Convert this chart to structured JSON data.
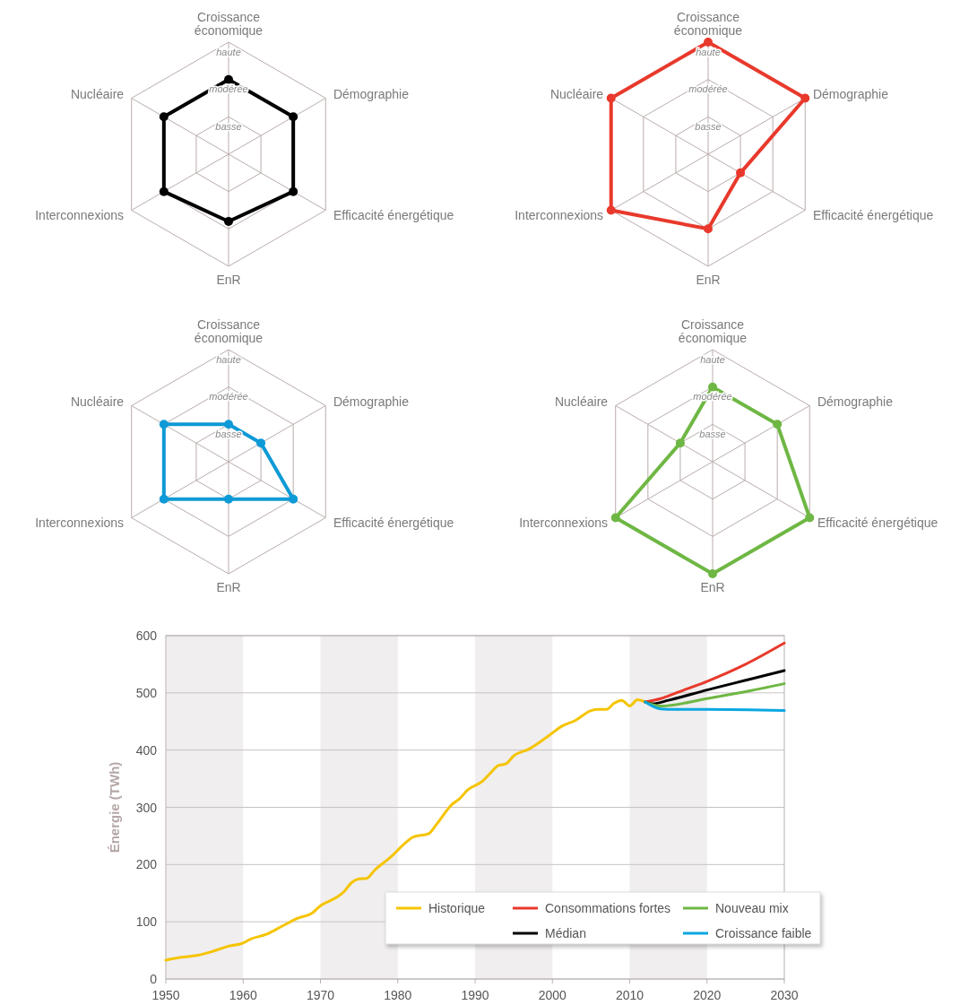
{
  "chart_data": [
    {
      "type": "radar",
      "categories": [
        "Croissance économique",
        "Démographie",
        "Efficacité énergétique",
        "EnR",
        "Interconnexions",
        "Nucléaire"
      ],
      "ylim": [
        0,
        3
      ],
      "yticks": [
        {
          "value": 1,
          "label": "basse"
        },
        {
          "value": 2,
          "label": "modérée"
        },
        {
          "value": 3,
          "label": "haute"
        }
      ],
      "grid": true,
      "marker": "circle",
      "series": [
        {
          "color": "#000000",
          "values": [
            2,
            2,
            2,
            1.8,
            2,
            2
          ]
        }
      ]
    },
    {
      "type": "radar",
      "categories": [
        "Croissance économique",
        "Démographie",
        "Efficacité énergétique",
        "EnR",
        "Interconnexions",
        "Nucléaire"
      ],
      "ylim": [
        0,
        3
      ],
      "yticks": [
        {
          "value": 1,
          "label": "basse"
        },
        {
          "value": 2,
          "label": "modérée"
        },
        {
          "value": 3,
          "label": "haute"
        }
      ],
      "grid": true,
      "marker": "circle",
      "series": [
        {
          "color": "#e8392c",
          "values": [
            3,
            3,
            1,
            2,
            3,
            3
          ]
        }
      ]
    },
    {
      "type": "radar",
      "categories": [
        "Croissance économique",
        "Démographie",
        "Efficacité énergétique",
        "EnR",
        "Interconnexions",
        "Nucléaire"
      ],
      "ylim": [
        0,
        3
      ],
      "yticks": [
        {
          "value": 1,
          "label": "basse"
        },
        {
          "value": 2,
          "label": "modérée"
        },
        {
          "value": 3,
          "label": "haute"
        }
      ],
      "grid": true,
      "marker": "circle",
      "series": [
        {
          "color": "#0e9ad6",
          "values": [
            1,
            1,
            2,
            1,
            2,
            2
          ]
        }
      ]
    },
    {
      "type": "radar",
      "categories": [
        "Croissance économique",
        "Démographie",
        "Efficacité énergétique",
        "EnR",
        "Interconnexions",
        "Nucléaire"
      ],
      "ylim": [
        0,
        3
      ],
      "yticks": [
        {
          "value": 1,
          "label": "basse"
        },
        {
          "value": 2,
          "label": "modérée"
        },
        {
          "value": 3,
          "label": "haute"
        }
      ],
      "grid": true,
      "marker": "circle",
      "series": [
        {
          "color": "#6fb744",
          "values": [
            2,
            2,
            3,
            3,
            3,
            1
          ]
        }
      ]
    },
    {
      "type": "line",
      "ylabel": "Énergie (TWh)",
      "xlim": [
        1950,
        2030
      ],
      "xticks": [
        1950,
        1960,
        1970,
        1980,
        1990,
        2000,
        2010,
        2020,
        2030
      ],
      "ylim": [
        0,
        600
      ],
      "yticks": [
        0,
        100,
        200,
        300,
        400,
        500,
        600
      ],
      "grid": "y",
      "legend": "bottom right",
      "marker": "none",
      "bands": [
        {
          "axis": "x",
          "from": 1950,
          "to": 1960,
          "color": "#f0eeef"
        },
        {
          "axis": "x",
          "from": 1970,
          "to": 1980,
          "color": "#f0eeef"
        },
        {
          "axis": "x",
          "from": 1990,
          "to": 2000,
          "color": "#f0eeef"
        },
        {
          "axis": "x",
          "from": 2010,
          "to": 2020,
          "color": "#f0eeef"
        }
      ],
      "series": [
        {
          "name": "Historique",
          "color": "#f5c400",
          "x": [
            1950,
            1952,
            1954,
            1956,
            1958,
            1960,
            1961,
            1963,
            1965,
            1967,
            1969,
            1970,
            1972,
            1973,
            1974,
            1975,
            1976,
            1977,
            1979,
            1981,
            1982,
            1984,
            1985,
            1987,
            1988,
            1989,
            1991,
            1992,
            1993,
            1994,
            1995,
            1997,
            1999,
            2000,
            2001,
            2003,
            2005,
            2006,
            2007,
            2008,
            2009,
            2010,
            2011,
            2012
          ],
          "values": [
            33,
            38,
            41,
            48,
            57,
            63,
            70,
            78,
            92,
            106,
            116,
            128,
            142,
            152,
            168,
            175,
            176,
            190,
            212,
            238,
            248,
            254,
            270,
            305,
            315,
            330,
            346,
            360,
            373,
            376,
            390,
            402,
            420,
            430,
            440,
            452,
            469,
            471,
            471,
            482,
            487,
            477,
            488,
            484
          ]
        },
        {
          "name": "Consommations fortes",
          "color": "#e8392c",
          "x": [
            2012,
            2014,
            2016,
            2020,
            2025,
            2030
          ],
          "values": [
            484,
            490,
            500,
            520,
            550,
            587
          ]
        },
        {
          "name": "Médian",
          "color": "#000000",
          "x": [
            2012,
            2013,
            2015,
            2020,
            2025,
            2030
          ],
          "values": [
            484,
            481,
            487,
            505,
            522,
            539
          ]
        },
        {
          "name": "Nouveau mix",
          "color": "#6fb744",
          "x": [
            2012,
            2014,
            2020,
            2025,
            2030
          ],
          "values": [
            484,
            477,
            490,
            502,
            516
          ]
        },
        {
          "name": "Croissance faible",
          "color": "#0aa7e0",
          "x": [
            2012,
            2014,
            2016,
            2020,
            2030
          ],
          "values": [
            484,
            472,
            471,
            471,
            469
          ]
        }
      ]
    }
  ]
}
